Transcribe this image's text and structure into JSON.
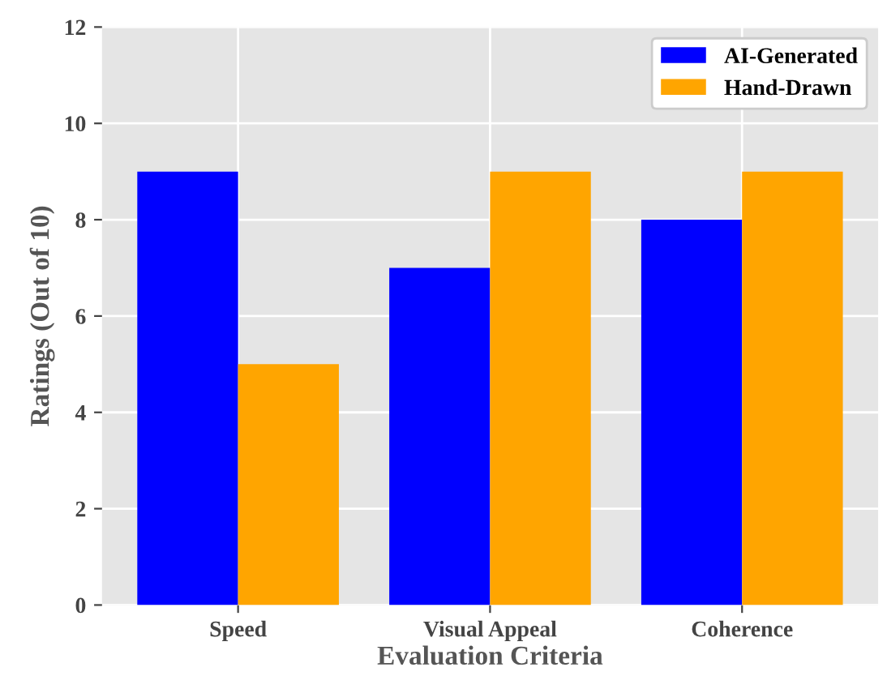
{
  "chart_data": {
    "type": "bar",
    "xlabel": "Evaluation Criteria",
    "ylabel": "Ratings (Out of 10)",
    "categories": [
      "Speed",
      "Visual Appeal",
      "Coherence"
    ],
    "series": [
      {
        "name": "AI-Generated",
        "color": "#0000ff",
        "values": [
          9,
          7,
          8
        ]
      },
      {
        "name": "Hand-Drawn",
        "color": "#ffa500",
        "values": [
          5,
          9,
          9
        ]
      }
    ],
    "ylim": [
      0,
      12
    ],
    "yticks": [
      0,
      2,
      4,
      6,
      8,
      10,
      12
    ],
    "grid": true,
    "legend": "top right"
  }
}
